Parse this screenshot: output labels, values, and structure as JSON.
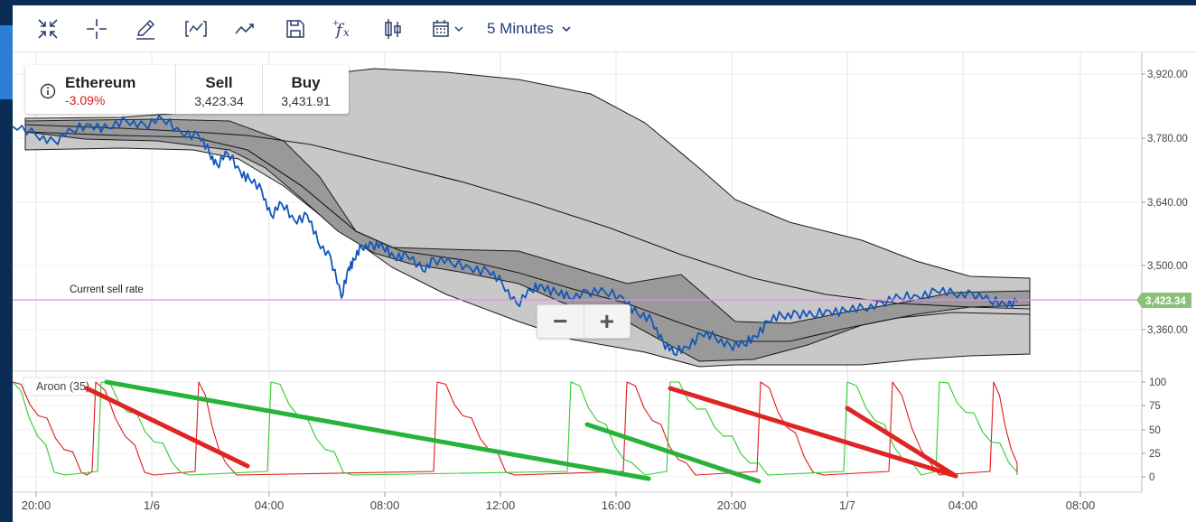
{
  "toolbar": {
    "icons": [
      "collapse-icon",
      "crosshair-icon",
      "pencil-icon",
      "indicator-icon",
      "trend-icon",
      "save-icon",
      "function-icon",
      "candlestick-icon",
      "calendar-icon"
    ],
    "timeframe_label": "5 Minutes"
  },
  "instrument": {
    "name": "Ethereum",
    "change": "-3.09%",
    "sell_label": "Sell",
    "sell_value": "3,423.34",
    "buy_label": "Buy",
    "buy_value": "3,431.91"
  },
  "chart": {
    "current_rate_label": "Current sell rate",
    "current_rate_value": "3,423.34",
    "aroon_label": "Aroon (35)",
    "price_ticks": [
      "3,920.00",
      "3,780.00",
      "3,640.00",
      "3,500.00",
      "3,360.00"
    ],
    "aroon_ticks": [
      "100",
      "75",
      "50",
      "25",
      "0"
    ],
    "time_ticks": [
      "20:00",
      "1/6",
      "04:00",
      "08:00",
      "12:00",
      "16:00",
      "20:00",
      "1/7",
      "04:00",
      "08:00"
    ],
    "colors": {
      "price_line": "#1256b8",
      "sell_rate_line": "#ee88ee",
      "sell_rate_badge": "#8cc07a",
      "aroon_up": "#2ecc2e",
      "aroon_down": "#e01818",
      "trend_green": "#27b33a",
      "trend_red": "#e02424"
    }
  },
  "zoom": {
    "minus": "−",
    "plus": "+"
  }
}
